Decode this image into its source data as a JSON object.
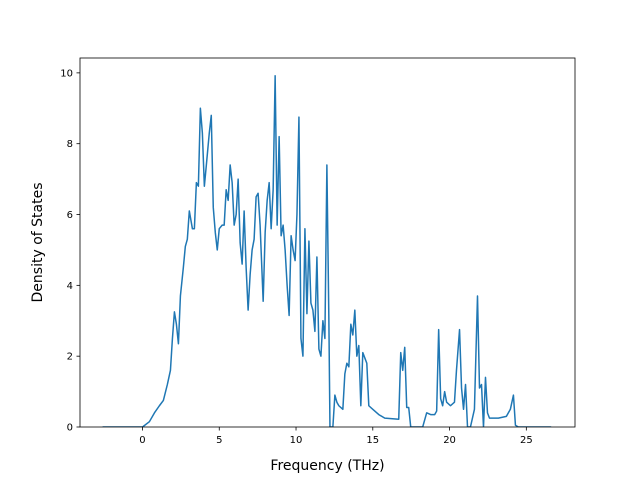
{
  "chart_data": {
    "type": "line",
    "xlabel": "Frequency (THz)",
    "ylabel": "Density of States",
    "color": "#1f77b4",
    "xlim": [
      -4.07,
      28.17
    ],
    "ylim": [
      0,
      10.42
    ],
    "xticks": [
      0,
      5,
      10,
      15,
      20,
      25
    ],
    "yticks": [
      0,
      2,
      4,
      6,
      8,
      10
    ],
    "grid": false,
    "x": [
      -2.6,
      0,
      0.45,
      0.78,
      1.1,
      1.36,
      1.62,
      1.82,
      1.95,
      2.08,
      2.21,
      2.34,
      2.47,
      2.66,
      2.79,
      2.92,
      3.05,
      3.25,
      3.38,
      3.51,
      3.64,
      3.77,
      3.9,
      4.03,
      4.16,
      4.35,
      4.48,
      4.61,
      4.74,
      4.87,
      5.0,
      5.19,
      5.32,
      5.45,
      5.58,
      5.71,
      5.84,
      5.97,
      6.1,
      6.23,
      6.36,
      6.49,
      6.62,
      6.75,
      6.88,
      7.01,
      7.14,
      7.27,
      7.4,
      7.53,
      7.66,
      7.86,
      7.99,
      8.12,
      8.25,
      8.38,
      8.51,
      8.64,
      8.77,
      8.9,
      9.03,
      9.16,
      9.29,
      9.42,
      9.55,
      9.68,
      9.81,
      9.94,
      10.06,
      10.19,
      10.32,
      10.45,
      10.58,
      10.71,
      10.84,
      10.97,
      11.1,
      11.23,
      11.36,
      11.49,
      11.62,
      11.75,
      11.88,
      12.01,
      12.14,
      12.21,
      12.4,
      12.53,
      12.66,
      12.79,
      13.05,
      13.18,
      13.31,
      13.44,
      13.57,
      13.7,
      13.83,
      13.96,
      14.09,
      14.22,
      14.35,
      14.48,
      14.61,
      14.74,
      15.0,
      15.39,
      15.78,
      16.69,
      16.82,
      16.95,
      17.08,
      17.21,
      17.34,
      17.47,
      18.25,
      18.51,
      18.77,
      19.03,
      19.16,
      19.29,
      19.42,
      19.55,
      19.68,
      19.81,
      20.06,
      20.32,
      20.45,
      20.65,
      20.78,
      20.91,
      21.04,
      21.17,
      21.36,
      21.62,
      21.82,
      21.95,
      22.08,
      22.21,
      22.34,
      22.47,
      22.6,
      23.18,
      23.7,
      23.96,
      24.16,
      24.29,
      24.48,
      26.62
    ],
    "values": [
      0,
      0,
      0.15,
      0.4,
      0.6,
      0.75,
      1.2,
      1.6,
      2.5,
      3.25,
      2.9,
      2.35,
      3.7,
      4.5,
      5.1,
      5.3,
      6.1,
      5.6,
      5.6,
      6.9,
      6.8,
      9.0,
      8.3,
      6.8,
      7.4,
      8.3,
      8.8,
      6.2,
      5.5,
      5.0,
      5.6,
      5.7,
      5.7,
      6.7,
      6.4,
      7.4,
      6.9,
      5.7,
      6.0,
      7.0,
      5.2,
      4.6,
      6.1,
      4.5,
      3.3,
      4.3,
      5.0,
      5.3,
      6.5,
      6.6,
      5.7,
      3.55,
      5.5,
      6.4,
      6.9,
      5.6,
      6.7,
      9.92,
      5.7,
      8.2,
      5.4,
      5.7,
      5.0,
      4.0,
      3.15,
      5.4,
      5.0,
      4.7,
      6.0,
      8.75,
      2.5,
      2.0,
      5.6,
      3.2,
      5.25,
      3.5,
      3.3,
      2.7,
      4.8,
      2.2,
      2.0,
      3.0,
      2.5,
      7.4,
      3.0,
      0,
      0,
      0.9,
      0.7,
      0.6,
      0.5,
      1.5,
      1.8,
      1.7,
      2.9,
      2.6,
      3.3,
      2.0,
      2.3,
      0.6,
      2.1,
      1.95,
      1.8,
      0.6,
      0.5,
      0.35,
      0.25,
      0.22,
      2.1,
      1.6,
      2.25,
      0.55,
      0.55,
      0,
      0,
      0.4,
      0.35,
      0.35,
      0.45,
      2.75,
      0.8,
      0.6,
      1.0,
      0.7,
      0.6,
      0.7,
      1.6,
      2.75,
      1.1,
      0.5,
      1.2,
      0,
      0,
      0.5,
      3.7,
      1.1,
      1.2,
      0,
      1.4,
      0.4,
      0.25,
      0.25,
      0.3,
      0.5,
      0.9,
      0.05,
      0,
      0
    ]
  }
}
